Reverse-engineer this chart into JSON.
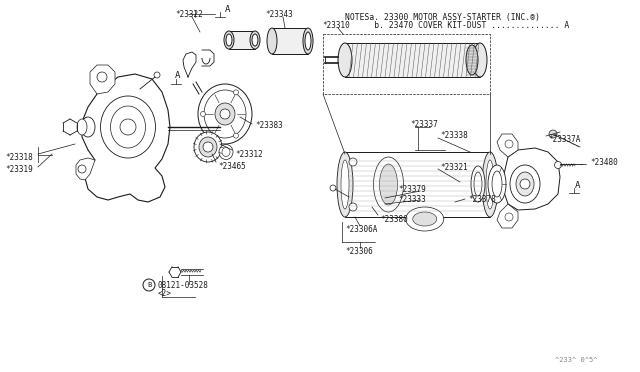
{
  "bg_color": "#ffffff",
  "line_color": "#1a1a1a",
  "gray_line": "#888888",
  "light_gray": "#cccccc",
  "notes_line1": "NOTESa. 23300 MOTOR ASSY-STARTER (INC.®)",
  "notes_line2": "      b. 23470 COVER KIT-DUST .............. A",
  "footer": "^233^ 0^5^",
  "labels": {
    "23310": "*23310",
    "23343": "*23343",
    "23322": "*23322",
    "23383": "*23383",
    "23312": "*23312",
    "23465": "*23465",
    "23318": "*23318",
    "23319": "*23319",
    "23337": "*23337",
    "23338": "*23338",
    "23480": "*23480",
    "23321": "*23321",
    "23379": "*23379",
    "23333": "*23333",
    "23378": "*23378",
    "23380": "*23380",
    "23306": "*23306",
    "23306A": "*23306A",
    "23337A": "*23337A",
    "bolt": "B 08121-03528",
    "bolt2": "<2>"
  }
}
